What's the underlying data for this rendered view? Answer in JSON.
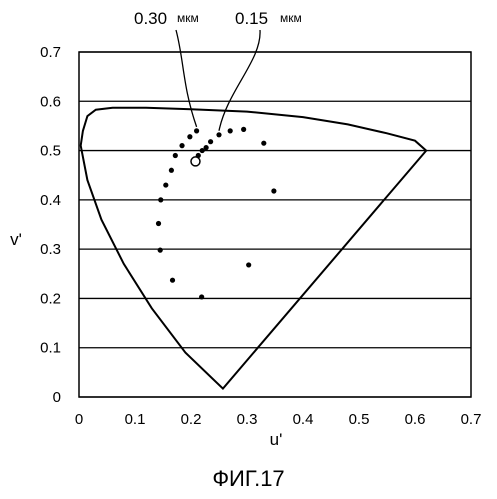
{
  "figure_caption": "ФИГ.17",
  "chart_data": {
    "type": "scatter",
    "xlabel": "u'",
    "ylabel": "v'",
    "xlim": [
      0,
      0.7
    ],
    "ylim": [
      0,
      0.7
    ],
    "x_ticks": [
      "0",
      "0.1",
      "0.2",
      "0.3",
      "0.4",
      "0.5",
      "0.6",
      "0.7"
    ],
    "y_ticks": [
      "0",
      "0.1",
      "0.2",
      "0.3",
      "0.4",
      "0.5",
      "0.6",
      "0.7"
    ],
    "grid": "horizontal",
    "locus_outline": [
      [
        0.257,
        0.017
      ],
      [
        0.62,
        0.5
      ],
      [
        0.6,
        0.52
      ],
      [
        0.55,
        0.535
      ],
      [
        0.48,
        0.553
      ],
      [
        0.4,
        0.568
      ],
      [
        0.3,
        0.579
      ],
      [
        0.2,
        0.584
      ],
      [
        0.12,
        0.587
      ],
      [
        0.06,
        0.587
      ],
      [
        0.03,
        0.583
      ],
      [
        0.015,
        0.57
      ],
      [
        0.007,
        0.54
      ],
      [
        0.003,
        0.51
      ],
      [
        0.015,
        0.44
      ],
      [
        0.04,
        0.36
      ],
      [
        0.08,
        0.27
      ],
      [
        0.13,
        0.18
      ],
      [
        0.19,
        0.09
      ],
      [
        0.257,
        0.017
      ]
    ],
    "points": [
      [
        0.146,
        0.4
      ],
      [
        0.155,
        0.43
      ],
      [
        0.165,
        0.46
      ],
      [
        0.172,
        0.49
      ],
      [
        0.184,
        0.51
      ],
      [
        0.198,
        0.528
      ],
      [
        0.21,
        0.54
      ],
      [
        0.213,
        0.49
      ],
      [
        0.22,
        0.5
      ],
      [
        0.227,
        0.506
      ],
      [
        0.235,
        0.518
      ],
      [
        0.25,
        0.532
      ],
      [
        0.27,
        0.54
      ],
      [
        0.294,
        0.543
      ],
      [
        0.33,
        0.515
      ],
      [
        0.348,
        0.418
      ],
      [
        0.142,
        0.352
      ],
      [
        0.145,
        0.298
      ],
      [
        0.303,
        0.268
      ],
      [
        0.167,
        0.237
      ],
      [
        0.219,
        0.203
      ]
    ],
    "reference_point": [
      0.208,
      0.478
    ],
    "annotations": [
      {
        "value": "0.30",
        "unit": "мкм",
        "target": [
          0.21,
          0.54
        ]
      },
      {
        "value": "0.15",
        "unit": "мкм",
        "target": [
          0.25,
          0.532
        ]
      }
    ]
  }
}
